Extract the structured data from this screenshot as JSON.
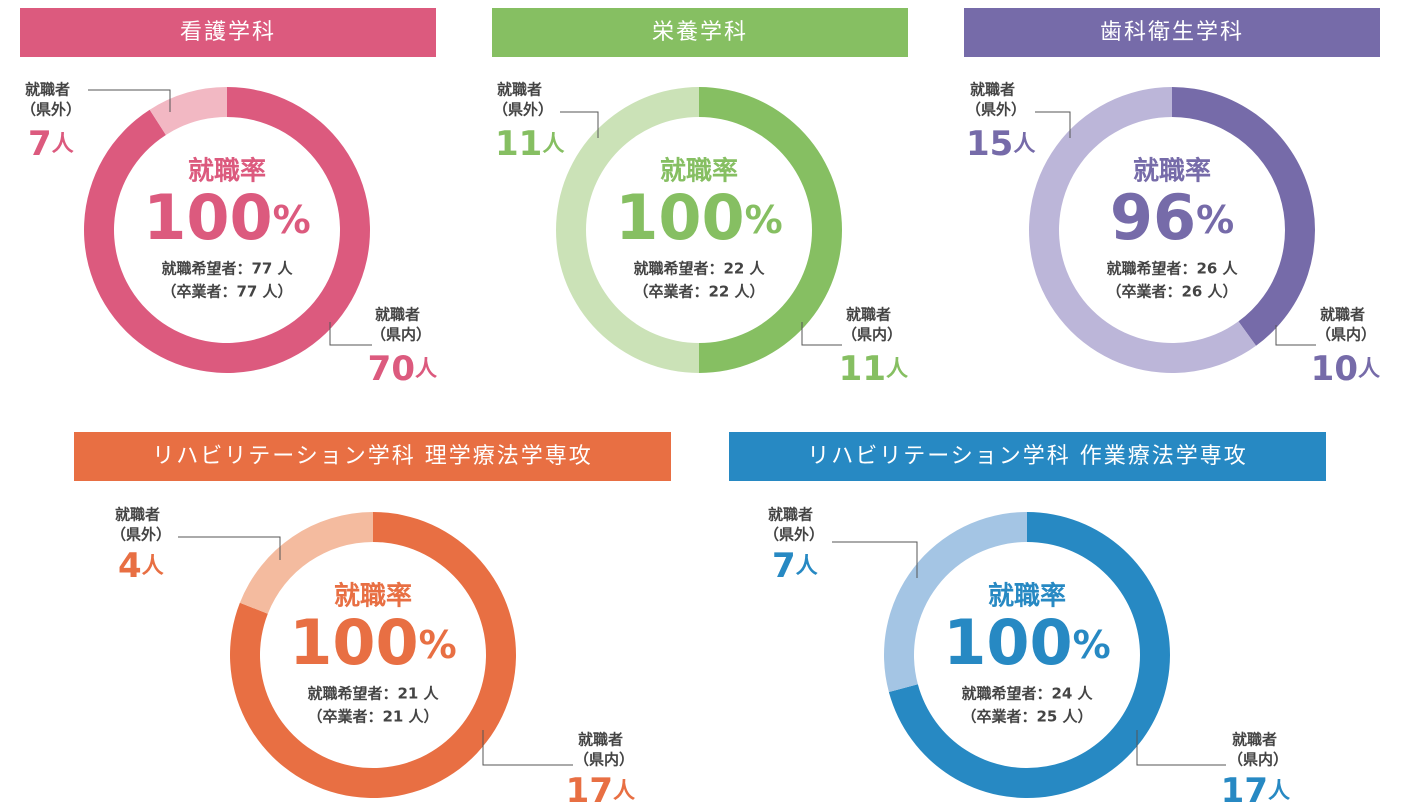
{
  "chart_data": [
    {
      "type": "donut",
      "title": "看護学科",
      "center_title": "就職率",
      "rate": 100,
      "rate_unit": "%",
      "applicants_label": "就職希望者：77 人",
      "graduates_label": "（卒業者：77 人）",
      "categories": [
        [
          "就職者",
          "（県内）"
        ],
        [
          "就職者",
          "（県外）"
        ]
      ],
      "values": [
        70,
        7
      ],
      "unit": "人",
      "colors": [
        "#dc5a7e",
        "#f2b8c3"
      ]
    },
    {
      "type": "donut",
      "title": "栄養学科",
      "center_title": "就職率",
      "rate": 100,
      "rate_unit": "%",
      "applicants_label": "就職希望者：22 人",
      "graduates_label": "（卒業者：22 人）",
      "categories": [
        [
          "就職者",
          "（県内）"
        ],
        [
          "就職者",
          "（県外）"
        ]
      ],
      "values": [
        11,
        11
      ],
      "unit": "人",
      "colors": [
        "#86bf62",
        "#cbe2b7"
      ]
    },
    {
      "type": "donut",
      "title": "歯科衛生学科",
      "center_title": "就職率",
      "rate": 96,
      "rate_unit": "%",
      "applicants_label": "就職希望者：26 人",
      "graduates_label": "（卒業者：26 人）",
      "categories": [
        [
          "就職者",
          "（県内）"
        ],
        [
          "就職者",
          "（県外）"
        ]
      ],
      "values": [
        10,
        15
      ],
      "unit": "人",
      "colors": [
        "#766ba9",
        "#bcb6d9"
      ]
    },
    {
      "type": "donut",
      "title": "リハビリテーション学科 理学療法学専攻",
      "center_title": "就職率",
      "rate": 100,
      "rate_unit": "%",
      "applicants_label": "就職希望者：21 人",
      "graduates_label": "（卒業者：21 人）",
      "categories": [
        [
          "就職者",
          "（県内）"
        ],
        [
          "就職者",
          "（県外）"
        ]
      ],
      "values": [
        17,
        4
      ],
      "unit": "人",
      "colors": [
        "#e86f43",
        "#f4bb9f"
      ]
    },
    {
      "type": "donut",
      "title": "リハビリテーション学科 作業療法学専攻",
      "center_title": "就職率",
      "rate": 100,
      "rate_unit": "%",
      "applicants_label": "就職希望者：24 人",
      "graduates_label": "（卒業者：25 人）",
      "categories": [
        [
          "就職者",
          "（県内）"
        ],
        [
          "就職者",
          "（県外）"
        ]
      ],
      "values": [
        17,
        7
      ],
      "unit": "人",
      "colors": [
        "#2789c3",
        "#a4c5e4"
      ]
    }
  ]
}
